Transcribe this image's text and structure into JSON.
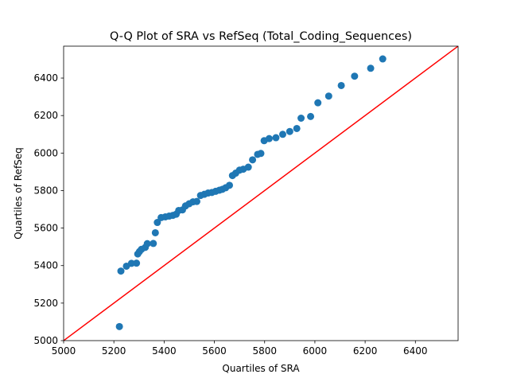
{
  "chart_data": {
    "type": "scatter",
    "title": "Q-Q Plot of SRA vs RefSeq (Total_Coding_Sequences)",
    "xlabel": "Quartiles of SRA",
    "ylabel": "Quartiles of RefSeq",
    "xlim": [
      5000,
      6570
    ],
    "ylim": [
      5000,
      6570
    ],
    "xticks": [
      "5000",
      "5200",
      "5400",
      "5600",
      "5800",
      "6000",
      "6200",
      "6400"
    ],
    "yticks": [
      "5000",
      "5200",
      "5400",
      "5600",
      "5800",
      "6000",
      "6200",
      "6400"
    ],
    "grid": false,
    "point_color": "#1f77b4",
    "reference_line": {
      "from": [
        5000,
        5000
      ],
      "to": [
        6570,
        6570
      ],
      "color": "#ff0000"
    },
    "points": [
      [
        5222,
        5075
      ],
      [
        5228,
        5371
      ],
      [
        5250,
        5397
      ],
      [
        5270,
        5412
      ],
      [
        5290,
        5413
      ],
      [
        5295,
        5462
      ],
      [
        5302,
        5475
      ],
      [
        5310,
        5487
      ],
      [
        5325,
        5497
      ],
      [
        5333,
        5517
      ],
      [
        5357,
        5518
      ],
      [
        5365,
        5575
      ],
      [
        5373,
        5630
      ],
      [
        5388,
        5656
      ],
      [
        5405,
        5660
      ],
      [
        5420,
        5664
      ],
      [
        5435,
        5668
      ],
      [
        5448,
        5674
      ],
      [
        5458,
        5694
      ],
      [
        5473,
        5697
      ],
      [
        5485,
        5718
      ],
      [
        5500,
        5730
      ],
      [
        5515,
        5740
      ],
      [
        5530,
        5742
      ],
      [
        5545,
        5774
      ],
      [
        5560,
        5780
      ],
      [
        5575,
        5787
      ],
      [
        5590,
        5790
      ],
      [
        5605,
        5796
      ],
      [
        5620,
        5802
      ],
      [
        5632,
        5807
      ],
      [
        5645,
        5815
      ],
      [
        5660,
        5828
      ],
      [
        5672,
        5880
      ],
      [
        5685,
        5893
      ],
      [
        5700,
        5909
      ],
      [
        5715,
        5914
      ],
      [
        5735,
        5925
      ],
      [
        5752,
        5964
      ],
      [
        5772,
        5993
      ],
      [
        5785,
        5998
      ],
      [
        5798,
        6066
      ],
      [
        5818,
        6077
      ],
      [
        5845,
        6082
      ],
      [
        5872,
        6100
      ],
      [
        5900,
        6115
      ],
      [
        5928,
        6131
      ],
      [
        5945,
        6186
      ],
      [
        5983,
        6195
      ],
      [
        6012,
        6268
      ],
      [
        6055,
        6304
      ],
      [
        6105,
        6360
      ],
      [
        6158,
        6410
      ],
      [
        6222,
        6452
      ],
      [
        6270,
        6502
      ]
    ]
  }
}
